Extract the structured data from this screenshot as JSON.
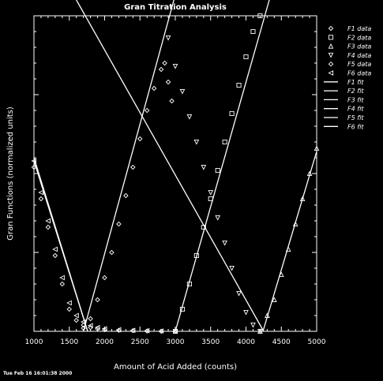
{
  "chart_data": {
    "type": "scatter",
    "title": "Gran Titration Analysis",
    "xlabel": "Amount of Acid Added (counts)",
    "ylabel": "Gran Functions (normalized units)",
    "xlim": [
      1000,
      5000
    ],
    "ylim": [
      0,
      1
    ],
    "x_ticks": [
      1000,
      1500,
      2000,
      2500,
      3000,
      3500,
      4000,
      4500,
      5000
    ],
    "x_tick_labels": [
      "1000",
      "1500",
      "2000",
      "2500",
      "3000",
      "3500",
      "4000",
      "4500",
      "5000"
    ],
    "grid": false,
    "legend_position": "right",
    "background": "#000000",
    "foreground": "#ffffff",
    "series": [
      {
        "name": "F1 data",
        "marker": "diamond",
        "x": [
          1000,
          1100,
          1200,
          1300,
          1400,
          1500,
          1600,
          1700,
          1800,
          1900,
          2000,
          2200,
          2400,
          2600,
          2800,
          3000
        ],
        "y": [
          0.52,
          0.42,
          0.33,
          0.24,
          0.15,
          0.07,
          0.035,
          0.02,
          0.012,
          0.008,
          0.005,
          0.003,
          0.002,
          0.001,
          0.0,
          0.0
        ]
      },
      {
        "name": "F2 data",
        "marker": "square",
        "x": [
          3000,
          3100,
          3200,
          3300,
          3400,
          3500,
          3600,
          3700,
          3800,
          3900,
          4000,
          4100,
          4200
        ],
        "y": [
          0.0,
          0.07,
          0.15,
          0.24,
          0.33,
          0.42,
          0.51,
          0.6,
          0.69,
          0.78,
          0.87,
          0.95,
          1.0
        ]
      },
      {
        "name": "F3 data",
        "marker": "triangle",
        "x": [
          4200,
          4300,
          4400,
          4500,
          4600,
          4700,
          4800,
          4900,
          5000
        ],
        "y": [
          0.0,
          0.05,
          0.1,
          0.18,
          0.26,
          0.34,
          0.42,
          0.5,
          0.58
        ]
      },
      {
        "name": "F4 data",
        "marker": "triangle-down",
        "x": [
          2900,
          3000,
          3100,
          3200,
          3300,
          3400,
          3500,
          3600,
          3700,
          3800,
          3900,
          4000,
          4100,
          4200
        ],
        "y": [
          0.93,
          0.84,
          0.76,
          0.68,
          0.6,
          0.52,
          0.44,
          0.36,
          0.28,
          0.2,
          0.12,
          0.06,
          0.02,
          0.0
        ]
      },
      {
        "name": "F5 data",
        "marker": "diamond",
        "x": [
          1700,
          1800,
          1900,
          2000,
          2100,
          2200,
          2300,
          2400,
          2500,
          2600,
          2700,
          2800,
          2850,
          2900,
          2950
        ],
        "y": [
          0.01,
          0.04,
          0.1,
          0.17,
          0.25,
          0.34,
          0.43,
          0.52,
          0.61,
          0.7,
          0.77,
          0.83,
          0.85,
          0.79,
          0.73
        ]
      },
      {
        "name": "F6 data",
        "marker": "triangle-left",
        "x": [
          1000,
          1100,
          1200,
          1300,
          1400,
          1500,
          1600,
          1700,
          1800,
          1900,
          2000,
          2200,
          2400,
          2600,
          2800,
          3000
        ],
        "y": [
          0.54,
          0.44,
          0.35,
          0.26,
          0.17,
          0.09,
          0.05,
          0.03,
          0.018,
          0.012,
          0.008,
          0.005,
          0.003,
          0.002,
          0.001,
          0.0
        ]
      }
    ],
    "fits": [
      {
        "name": "F1 fit",
        "x": [
          1000,
          1760
        ],
        "y": [
          0.54,
          0.0
        ]
      },
      {
        "name": "F2 fit",
        "x": [
          3000,
          4330
        ],
        "y": [
          0.0,
          1.05
        ]
      },
      {
        "name": "F3 fit",
        "x": [
          4240,
          5000
        ],
        "y": [
          0.0,
          0.57
        ]
      },
      {
        "name": "F4 fit",
        "x": [
          1600,
          4250
        ],
        "y": [
          1.05,
          0.0
        ]
      },
      {
        "name": "F5 fit",
        "x": [
          1700,
          2980
        ],
        "y": [
          0.0,
          1.05
        ]
      },
      {
        "name": "F6 fit",
        "x": [
          1000,
          1760
        ],
        "y": [
          0.55,
          0.0
        ]
      }
    ]
  },
  "footer_text": "Tue Feb 16 16:01:38 2000"
}
